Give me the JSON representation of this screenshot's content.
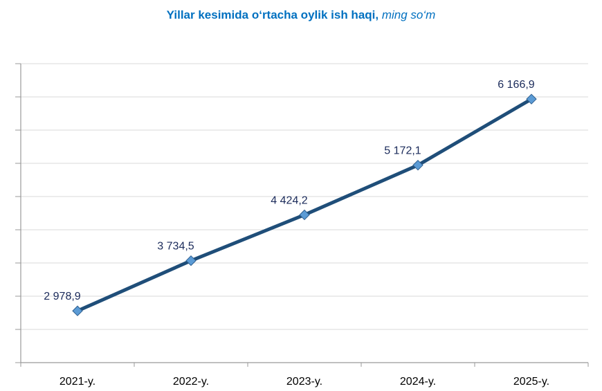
{
  "chart_data": {
    "type": "line",
    "title": "Yillar kesimida o‘rtacha oylik ish haqi,",
    "title_unit": "ming so‘m",
    "categories": [
      "2021-y.",
      "2022-y.",
      "2023-y.",
      "2024-y.",
      "2025-y."
    ],
    "series": [
      {
        "name": "O‘rtacha oylik ish haqi",
        "values": [
          2978.9,
          3734.5,
          4424.2,
          5172.1,
          6166.9
        ],
        "labels": [
          "2 978,9",
          "3 734,5",
          "4 424,2",
          "5 172,1",
          "6 166,9"
        ]
      }
    ],
    "xlabel": "",
    "ylabel": "",
    "ylim": [
      2200,
      6700
    ],
    "ytick_step": 500,
    "grid": true,
    "legend": "none",
    "colors": {
      "title": "#0070C0",
      "line": "#1F4E79",
      "marker": "#5B9BD5",
      "grid": "#D9D9D9"
    }
  }
}
